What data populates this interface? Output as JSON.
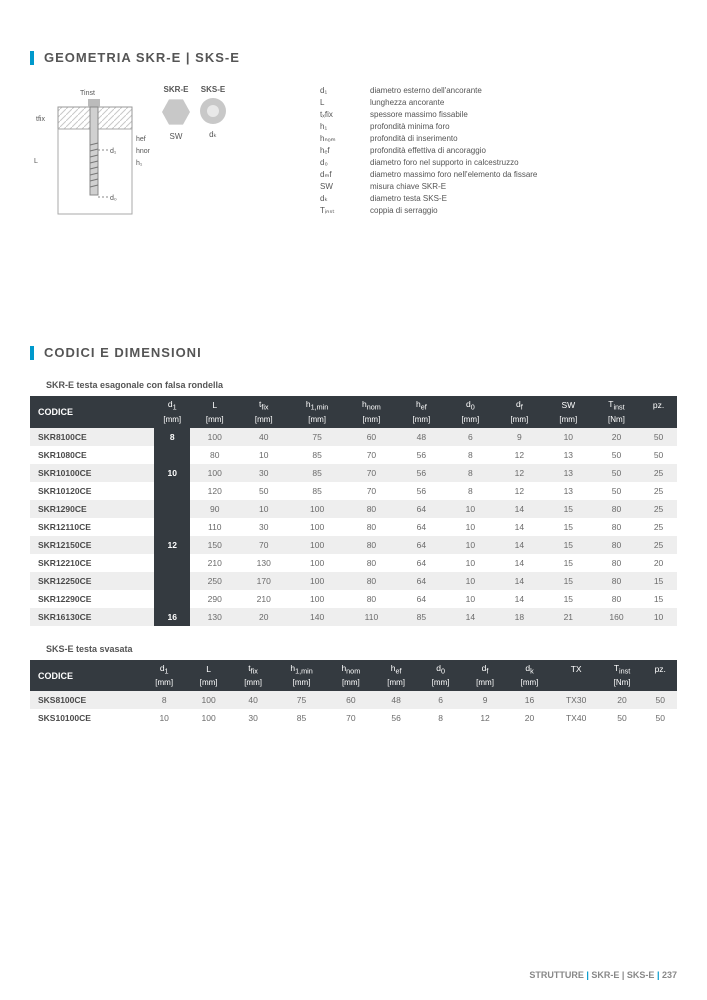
{
  "sections": {
    "geometry_title": "GEOMETRIA SKR-E | SKS-E",
    "codes_title": "CODICI E DIMENSIONI"
  },
  "diagram": {
    "skr_label": "SKR-E",
    "sks_label": "SKS-E",
    "sw_label": "SW",
    "dk_label": "dₖ"
  },
  "legend": [
    {
      "sym": "d₁",
      "desc": "diametro esterno dell'ancorante"
    },
    {
      "sym": "L",
      "desc": "lunghezza ancorante"
    },
    {
      "sym": "tₓfix",
      "desc": "spessore massimo fissabile"
    },
    {
      "sym": "h₁",
      "desc": "profondità minima foro"
    },
    {
      "sym": "hₙₒₘ",
      "desc": "profondità di inserimento"
    },
    {
      "sym": "hₑf",
      "desc": "profondità effettiva di ancoraggio"
    },
    {
      "sym": "d₀",
      "desc": "diametro foro nel supporto in calcestruzzo"
    },
    {
      "sym": "dₘf",
      "desc": "diametro massimo foro nell'elemento da fissare"
    },
    {
      "sym": "SW",
      "desc": "misura chiave SKR-E"
    },
    {
      "sym": "dₖ",
      "desc": "diametro testa SKS-E"
    },
    {
      "sym": "Tᵢₙₛₜ",
      "desc": "coppia di serraggio"
    }
  ],
  "table1": {
    "title": "SKR-E testa esagonale con falsa rondella",
    "columns": [
      "CODICE",
      "d₁",
      "L",
      "tfix",
      "h1,min",
      "hnom",
      "hef",
      "d₀",
      "df",
      "SW",
      "Tinst",
      "pz."
    ],
    "units": [
      "",
      "[mm]",
      "[mm]",
      "[mm]",
      "[mm]",
      "[mm]",
      "[mm]",
      "[mm]",
      "[mm]",
      "[mm]",
      "[Nm]",
      ""
    ],
    "groups": [
      {
        "d1": "8",
        "span": 1,
        "rows": [
          [
            "SKR8100CE",
            "100",
            "40",
            "75",
            "60",
            "48",
            "6",
            "9",
            "10",
            "20",
            "50"
          ]
        ]
      },
      {
        "d1": "10",
        "span": 3,
        "rows": [
          [
            "SKR1080CE",
            "80",
            "10",
            "85",
            "70",
            "56",
            "8",
            "12",
            "13",
            "50",
            "50"
          ],
          [
            "SKR10100CE",
            "100",
            "30",
            "85",
            "70",
            "56",
            "8",
            "12",
            "13",
            "50",
            "25"
          ],
          [
            "SKR10120CE",
            "120",
            "50",
            "85",
            "70",
            "56",
            "8",
            "12",
            "13",
            "50",
            "25"
          ]
        ]
      },
      {
        "d1": "12",
        "span": 5,
        "rows": [
          [
            "SKR1290CE",
            "90",
            "10",
            "100",
            "80",
            "64",
            "10",
            "14",
            "15",
            "80",
            "25"
          ],
          [
            "SKR12110CE",
            "110",
            "30",
            "100",
            "80",
            "64",
            "10",
            "14",
            "15",
            "80",
            "25"
          ],
          [
            "SKR12150CE",
            "150",
            "70",
            "100",
            "80",
            "64",
            "10",
            "14",
            "15",
            "80",
            "25"
          ],
          [
            "SKR12210CE",
            "210",
            "130",
            "100",
            "80",
            "64",
            "10",
            "14",
            "15",
            "80",
            "20"
          ],
          [
            "SKR12250CE",
            "250",
            "170",
            "100",
            "80",
            "64",
            "10",
            "14",
            "15",
            "80",
            "15"
          ]
        ]
      },
      {
        "d1": "",
        "span": 1,
        "rows": [
          [
            "SKR12290CE",
            "290",
            "210",
            "100",
            "80",
            "64",
            "10",
            "14",
            "15",
            "80",
            "15"
          ]
        ]
      },
      {
        "d1": "16",
        "span": 1,
        "rows": [
          [
            "SKR16130CE",
            "130",
            "20",
            "140",
            "110",
            "85",
            "14",
            "18",
            "21",
            "160",
            "10"
          ]
        ]
      }
    ]
  },
  "table2": {
    "title": "SKS-E testa svasata",
    "columns": [
      "CODICE",
      "d₁",
      "L",
      "tfix",
      "h1,min",
      "hnom",
      "hef",
      "d₀",
      "df",
      "dk",
      "TX",
      "Tinst",
      "pz."
    ],
    "units": [
      "",
      "[mm]",
      "[mm]",
      "[mm]",
      "[mm]",
      "[mm]",
      "[mm]",
      "[mm]",
      "[mm]",
      "[mm]",
      "",
      "[Nm]",
      ""
    ],
    "rows": [
      [
        "SKS8100CE",
        "8",
        "100",
        "40",
        "75",
        "60",
        "48",
        "6",
        "9",
        "16",
        "TX30",
        "20",
        "50"
      ],
      [
        "SKS10100CE",
        "10",
        "100",
        "30",
        "85",
        "70",
        "56",
        "8",
        "12",
        "20",
        "TX40",
        "50",
        "50"
      ]
    ]
  },
  "footer": {
    "cat": "STRUTTURE",
    "prod": "SKR-E | SKS-E",
    "page": "237"
  },
  "colors": {
    "accent": "#0099cc",
    "header_bg": "#343a40",
    "band": "#eeeeee"
  }
}
